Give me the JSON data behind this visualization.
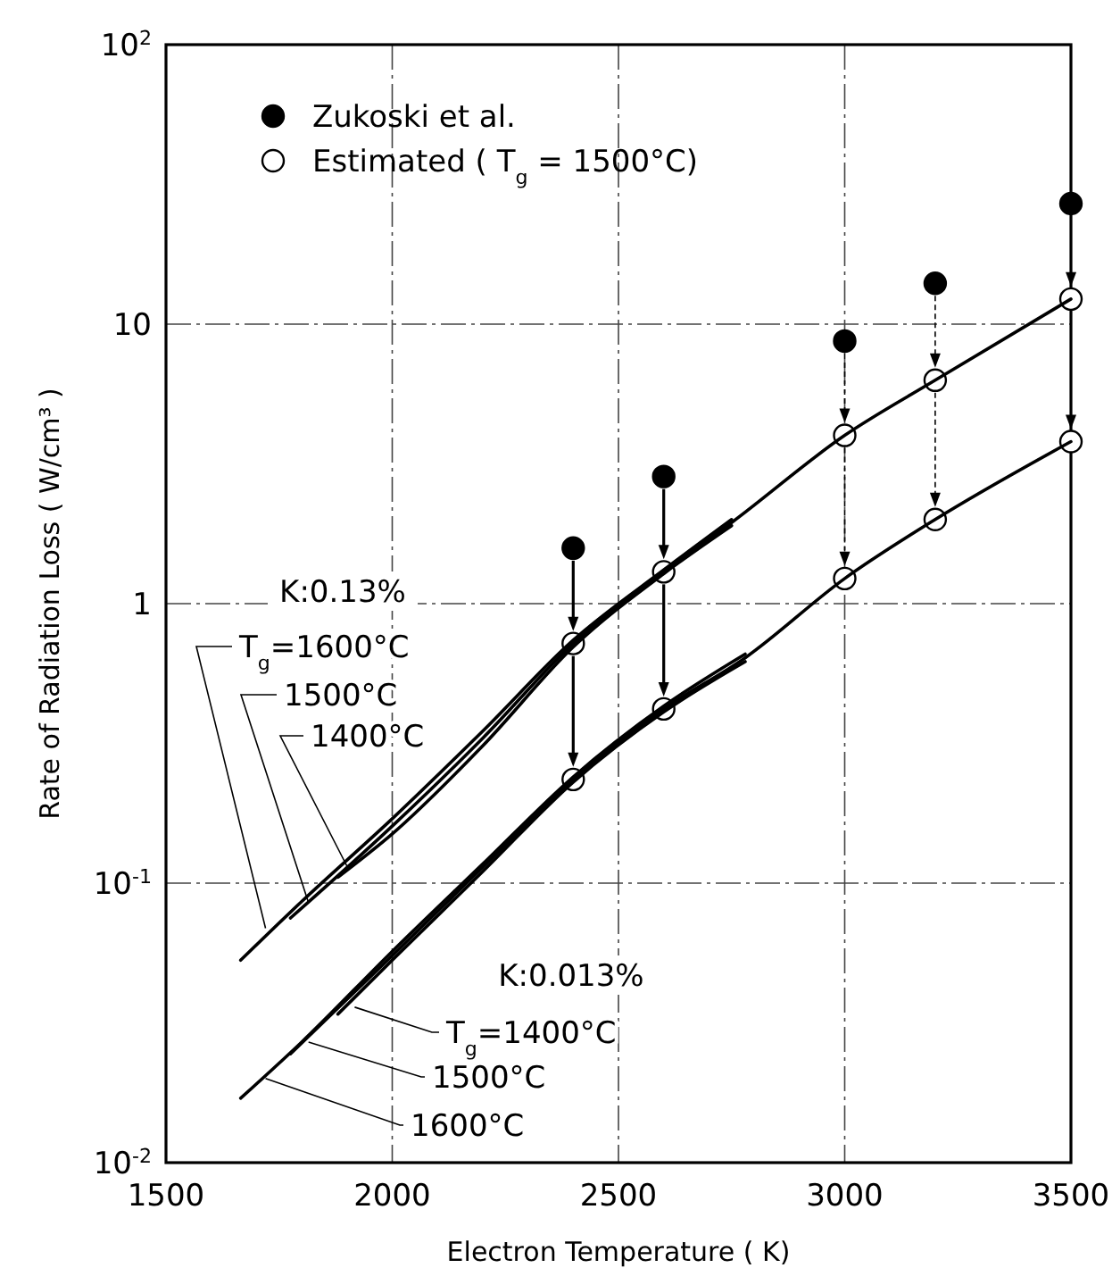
{
  "chart_data": {
    "type": "line",
    "xlabel": "Electron Temperature ( K)",
    "ylabel": "Rate of Radiation Loss ( W/cm³ )",
    "log": "y",
    "xlim": [
      1500,
      3500
    ],
    "xticks": [
      1500,
      2000,
      2500,
      3000,
      3500
    ],
    "ylim": [
      0.01,
      100
    ],
    "yticks": [
      {
        "value": 0.01,
        "label": "10$^{-2}$"
      },
      {
        "value": 0.1,
        "label": "10$^{-1}$"
      },
      1,
      10,
      {
        "value": 100,
        "label": "10$^{2}$"
      }
    ],
    "grid": true,
    "legend": "top left",
    "series": [
      {
        "type": "scatter",
        "name": "Zukoski et al.",
        "color": "#000000",
        "marker": "circle",
        "x": [
          2400,
          2600,
          3000,
          3200,
          3500
        ],
        "values": [
          1.58,
          2.85,
          8.7,
          14,
          27
        ]
      },
      {
        "type": "scatter",
        "name": "Estimated ( T$_{g}$ = 1500°C)",
        "color": "#ffffff",
        "marker": "circle",
        "x": [
          2400,
          2600,
          3000,
          3200,
          3500,
          2400,
          2600,
          3000,
          3200,
          3500
        ],
        "values": [
          0.72,
          1.3,
          4.0,
          6.3,
          12.3,
          0.235,
          0.42,
          1.23,
          2.0,
          3.8
        ]
      },
      {
        "color": "#000000",
        "x": [
          1665,
          1800,
          2000,
          2200,
          2400,
          2600,
          2750
        ],
        "values": [
          0.053,
          0.086,
          0.17,
          0.35,
          0.74,
          1.32,
          2.0
        ]
      },
      {
        "color": "#000000",
        "x": [
          1775,
          2000,
          2200,
          2400,
          2600,
          2750,
          3000,
          3200,
          3500
        ],
        "values": [
          0.075,
          0.16,
          0.33,
          0.72,
          1.3,
          1.95,
          4.0,
          6.3,
          12.3
        ]
      },
      {
        "color": "#000000",
        "x": [
          1880,
          2000,
          2200,
          2400,
          2600,
          2750
        ],
        "values": [
          0.105,
          0.15,
          0.31,
          0.7,
          1.28,
          1.9
        ]
      },
      {
        "color": "#000000",
        "x": [
          1665,
          1800,
          2000,
          2200,
          2400,
          2600,
          2780
        ],
        "values": [
          0.017,
          0.027,
          0.057,
          0.117,
          0.24,
          0.43,
          0.66
        ]
      },
      {
        "color": "#000000",
        "x": [
          1775,
          2000,
          2200,
          2400,
          2600,
          2780,
          3000,
          3200,
          3500
        ],
        "values": [
          0.0245,
          0.055,
          0.114,
          0.235,
          0.42,
          0.64,
          1.23,
          2.0,
          3.8
        ]
      },
      {
        "color": "#000000",
        "x": [
          1880,
          2000,
          2200,
          2400,
          2600,
          2780
        ],
        "values": [
          0.034,
          0.053,
          0.11,
          0.23,
          0.41,
          0.62
        ]
      }
    ],
    "annotations": [
      "K:0.13%",
      {
        "text": "T$_{g}$=1600°C",
        "x": 1720,
        "y": 0.069
      },
      {
        "text": "1500°C",
        "x": 1815,
        "y": 0.085
      },
      {
        "text": "1400°C",
        "x": 1900,
        "y": 0.115
      },
      "K:0.013%",
      {
        "text": "T$_{g}$=1400°C",
        "x": 1917,
        "y": 0.036
      },
      {
        "text": "1500°C",
        "x": 1815,
        "y": 0.027
      },
      {
        "text": "1600°C",
        "x": 1720,
        "y": 0.02
      }
    ]
  }
}
